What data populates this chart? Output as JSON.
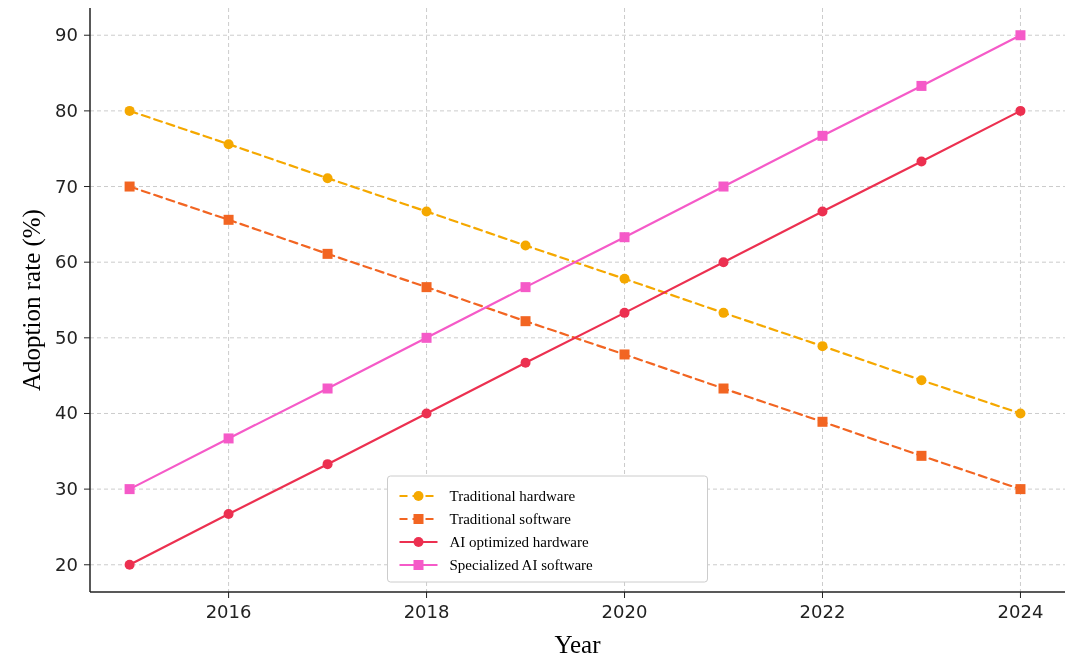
{
  "chart_data": {
    "type": "line",
    "xlabel": "Year",
    "ylabel": "Adoption rate (%)",
    "x": [
      2015,
      2016,
      2017,
      2018,
      2019,
      2020,
      2021,
      2022,
      2023,
      2024
    ],
    "xlim": [
      2014.6,
      2024.45
    ],
    "xticks": [
      2016,
      2018,
      2020,
      2022,
      2024
    ],
    "ylim": [
      16.4,
      93.6
    ],
    "yticks": [
      20,
      30,
      40,
      50,
      60,
      70,
      80,
      90
    ],
    "grid": true,
    "legend": "bottom",
    "series": [
      {
        "name": "Traditional hardware",
        "color": "#f5a800",
        "marker": "circle",
        "line_style": "dashed",
        "values": [
          80,
          75.6,
          71.1,
          66.7,
          62.2,
          57.8,
          53.3,
          48.9,
          44.4,
          40
        ]
      },
      {
        "name": "Traditional software",
        "color": "#f26522",
        "marker": "square",
        "line_style": "dashed",
        "values": [
          70,
          65.6,
          61.1,
          56.7,
          52.2,
          47.8,
          43.3,
          38.9,
          34.4,
          30
        ]
      },
      {
        "name": "AI optimized hardware",
        "color": "#ec3050",
        "marker": "circle",
        "line_style": "solid",
        "values": [
          20,
          26.7,
          33.3,
          40,
          46.7,
          53.3,
          60,
          66.7,
          73.3,
          80
        ]
      },
      {
        "name": "Specialized AI software",
        "color": "#f55ac8",
        "marker": "square",
        "line_style": "solid",
        "values": [
          30,
          36.7,
          43.3,
          50,
          56.7,
          63.3,
          70,
          76.7,
          83.3,
          90
        ]
      }
    ]
  }
}
